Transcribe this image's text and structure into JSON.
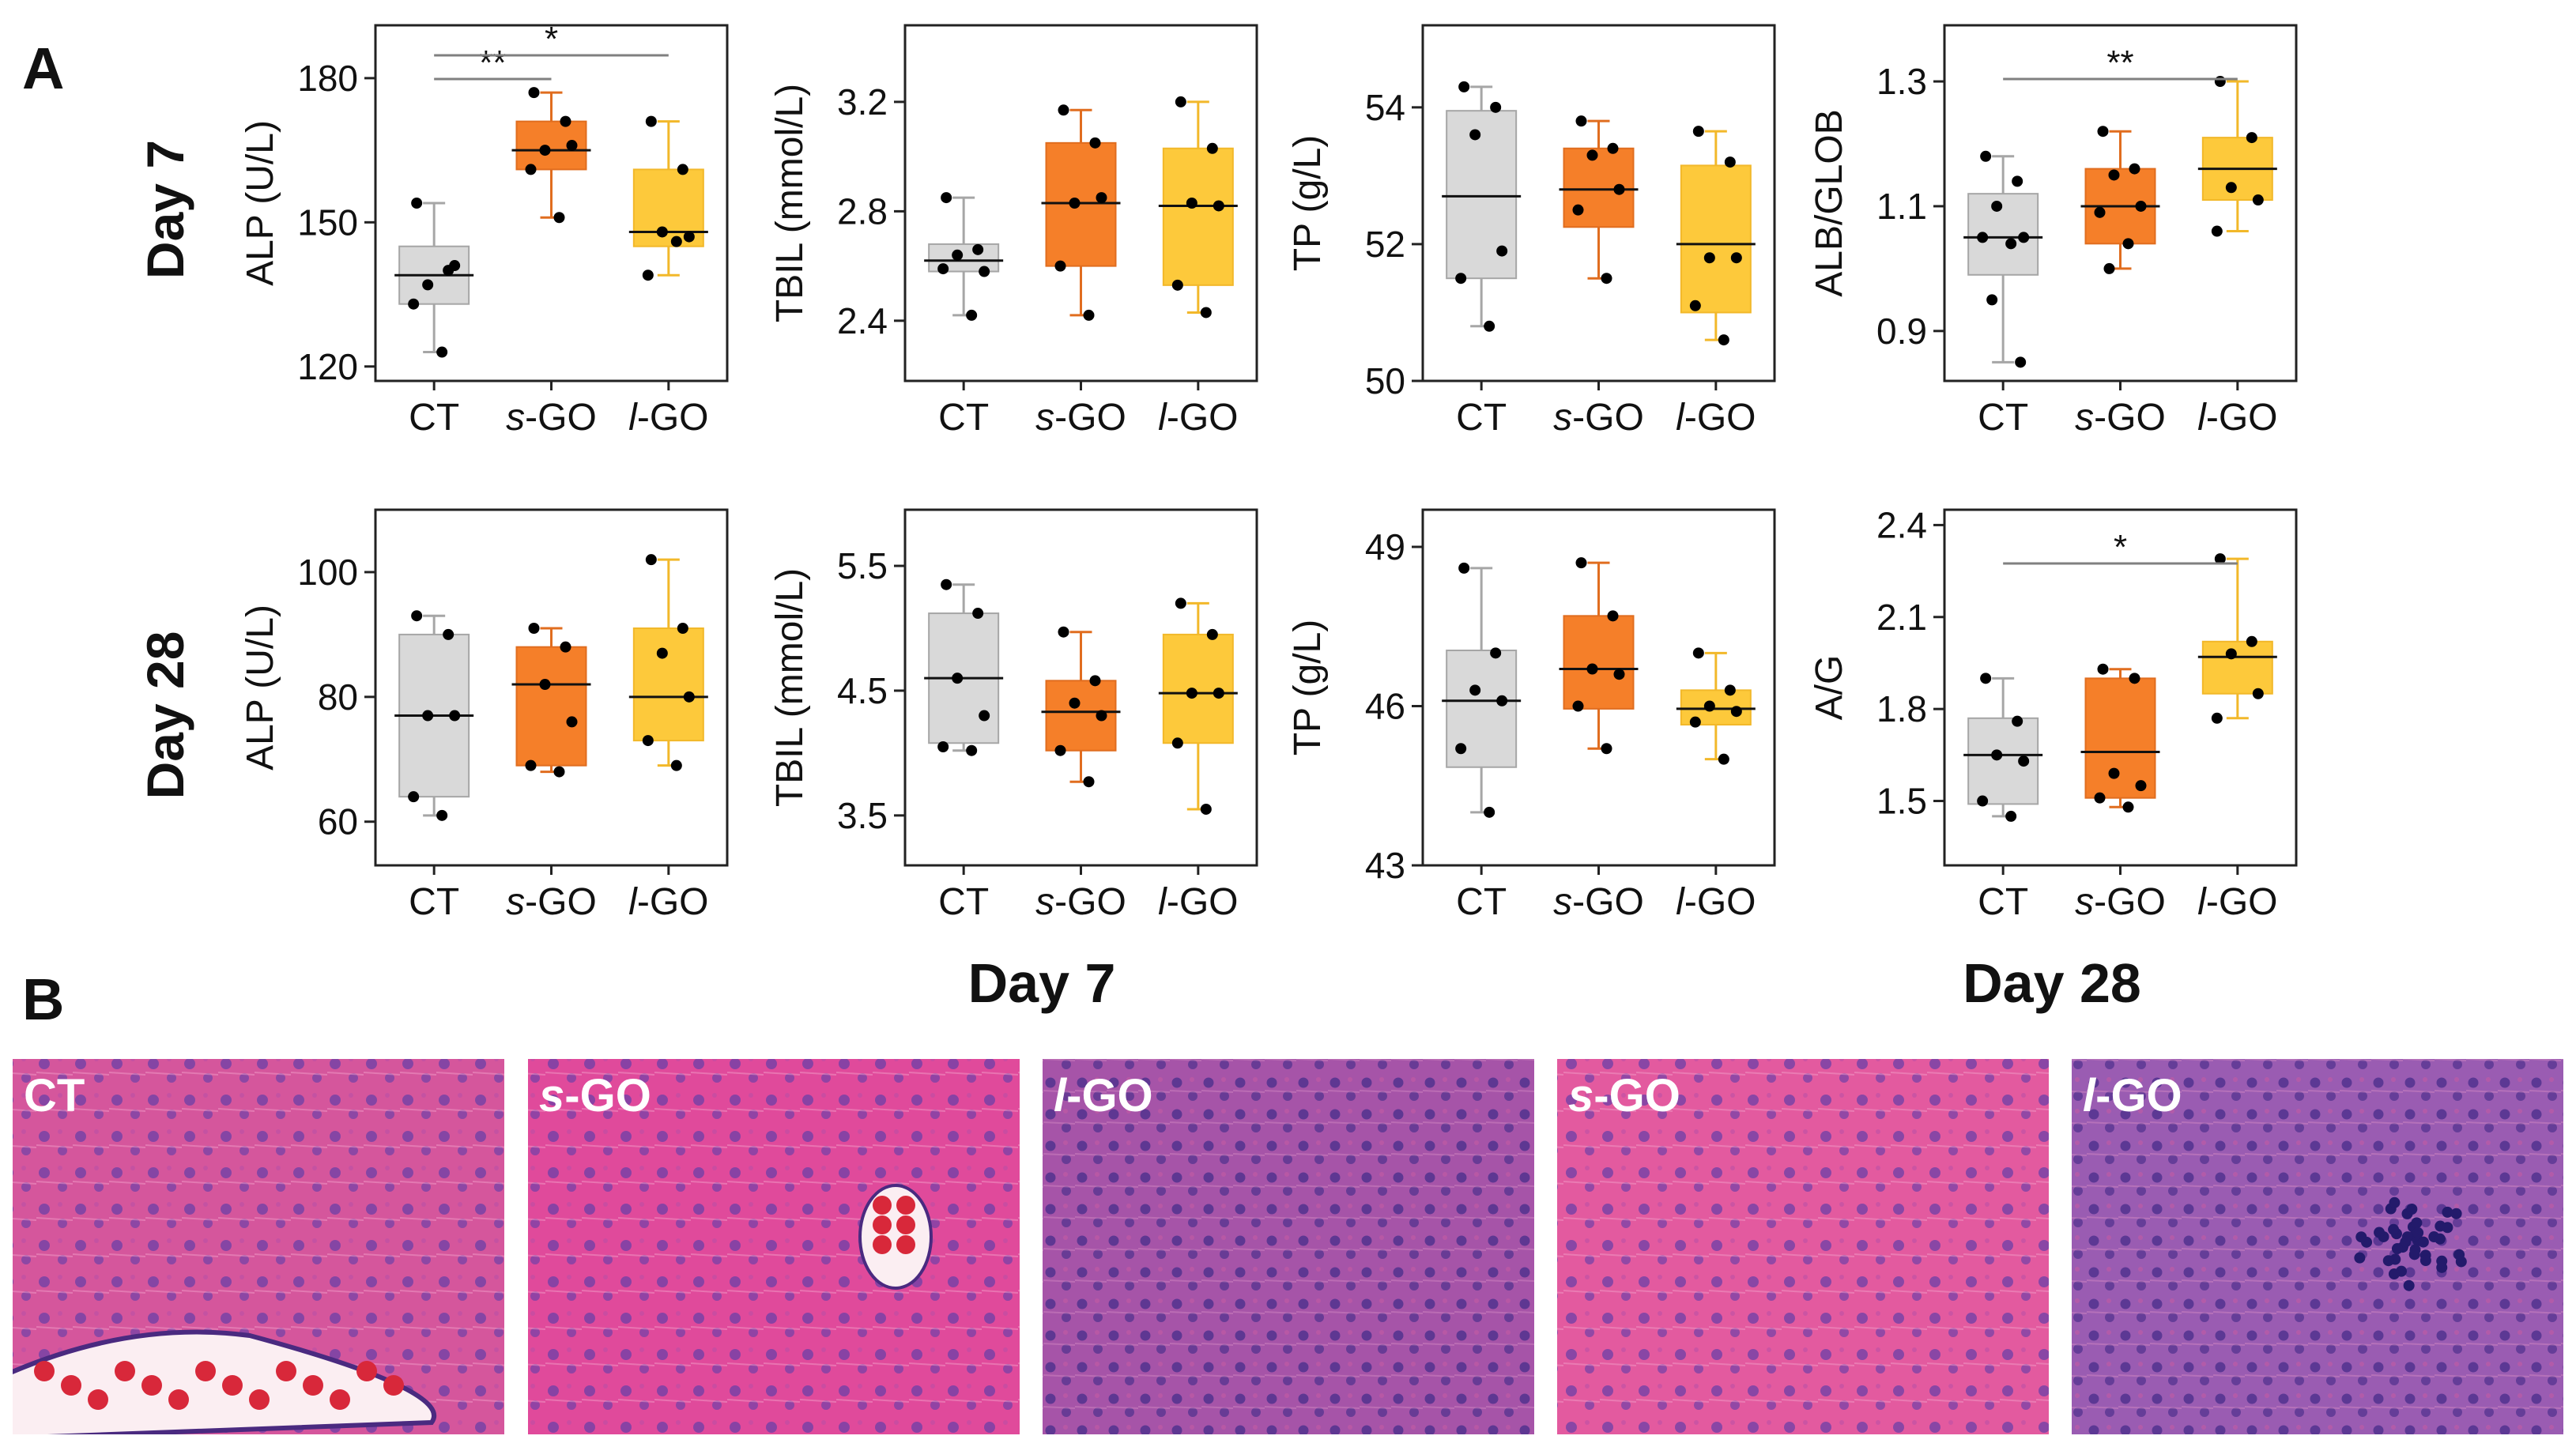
{
  "panel_a_label": "A",
  "panel_b_label": "B",
  "rows": [
    {
      "label": "Day 7"
    },
    {
      "label": "Day 28"
    }
  ],
  "colors": {
    "CT": "#d9d9d9",
    "s-GO": "#f57f29",
    "l-GO": "#fdc93b",
    "whisker_CT": "#a6a6a6",
    "whisker_s-GO": "#e06d1f",
    "whisker_l-GO": "#f2b82a",
    "median": "#111111",
    "point": "#000000",
    "sig_line": "#808080"
  },
  "chart_data": [
    {
      "type": "box",
      "row": 0,
      "col": 0,
      "ylabel": "ALP (U/L)",
      "ylim": [
        117,
        191
      ],
      "yticks": [
        120,
        150,
        180
      ],
      "categories": [
        {
          "prefix": "",
          "italic": "",
          "suffix": "CT"
        },
        {
          "prefix": "",
          "italic": "s",
          "suffix": "-GO"
        },
        {
          "prefix": "",
          "italic": "l",
          "suffix": "-GO"
        }
      ],
      "series": [
        {
          "name": "CT",
          "min": 123,
          "q1": 133,
          "median": 139,
          "q3": 145,
          "max": 154,
          "points": [
            154,
            140,
            137,
            141,
            133,
            123
          ]
        },
        {
          "name": "s-GO",
          "min": 151,
          "q1": 161,
          "median": 165,
          "q3": 171,
          "max": 177,
          "points": [
            177,
            171,
            165,
            166,
            161,
            151
          ]
        },
        {
          "name": "l-GO",
          "min": 139,
          "q1": 145,
          "median": 148,
          "q3": 161,
          "max": 171,
          "points": [
            171,
            161,
            148,
            147,
            139,
            146
          ]
        }
      ],
      "significance": [
        {
          "from": 0,
          "to": 1,
          "label": "**",
          "level": 0
        },
        {
          "from": 0,
          "to": 2,
          "label": "*",
          "level": 1
        }
      ]
    },
    {
      "type": "box",
      "row": 0,
      "col": 1,
      "ylabel": "TBIL (mmol/L)",
      "ylim": [
        2.18,
        3.48
      ],
      "yticks": [
        2.4,
        2.8,
        3.2
      ],
      "categories": [
        {
          "prefix": "",
          "italic": "",
          "suffix": "CT"
        },
        {
          "prefix": "",
          "italic": "s",
          "suffix": "-GO"
        },
        {
          "prefix": "",
          "italic": "l",
          "suffix": "-GO"
        }
      ],
      "series": [
        {
          "name": "CT",
          "min": 2.42,
          "q1": 2.58,
          "median": 2.62,
          "q3": 2.68,
          "max": 2.85,
          "points": [
            2.85,
            2.66,
            2.64,
            2.58,
            2.59,
            2.42
          ]
        },
        {
          "name": "s-GO",
          "min": 2.42,
          "q1": 2.6,
          "median": 2.83,
          "q3": 3.05,
          "max": 3.17,
          "points": [
            3.17,
            3.05,
            2.83,
            2.85,
            2.6,
            2.42
          ]
        },
        {
          "name": "l-GO",
          "min": 2.43,
          "q1": 2.53,
          "median": 2.82,
          "q3": 3.03,
          "max": 3.2,
          "points": [
            3.2,
            3.03,
            2.83,
            2.82,
            2.53,
            2.43
          ]
        }
      ],
      "significance": []
    },
    {
      "type": "box",
      "row": 0,
      "col": 2,
      "ylabel": "TP (g/L)",
      "ylim": [
        50,
        55.2
      ],
      "yticks": [
        50,
        52,
        54
      ],
      "categories": [
        {
          "prefix": "",
          "italic": "",
          "suffix": "CT"
        },
        {
          "prefix": "",
          "italic": "s",
          "suffix": "-GO"
        },
        {
          "prefix": "",
          "italic": "l",
          "suffix": "-GO"
        }
      ],
      "series": [
        {
          "name": "CT",
          "min": 50.8,
          "q1": 51.5,
          "median": 52.7,
          "q3": 53.95,
          "max": 54.3,
          "points": [
            54.3,
            54.0,
            53.6,
            51.9,
            51.5,
            50.8
          ]
        },
        {
          "name": "s-GO",
          "min": 51.5,
          "q1": 52.25,
          "median": 52.8,
          "q3": 53.4,
          "max": 53.8,
          "points": [
            53.8,
            53.4,
            53.3,
            52.8,
            52.5,
            51.5
          ]
        },
        {
          "name": "l-GO",
          "min": 50.6,
          "q1": 51.0,
          "median": 52.0,
          "q3": 53.15,
          "max": 53.65,
          "points": [
            53.65,
            53.2,
            51.8,
            51.8,
            51.1,
            50.6
          ]
        }
      ],
      "significance": []
    },
    {
      "type": "box",
      "row": 0,
      "col": 3,
      "ylabel": "ALB/GLOB",
      "ylim": [
        0.82,
        1.39
      ],
      "yticks": [
        0.9,
        1.1,
        1.3
      ],
      "categories": [
        {
          "prefix": "",
          "italic": "",
          "suffix": "CT"
        },
        {
          "prefix": "",
          "italic": "s",
          "suffix": "-GO"
        },
        {
          "prefix": "",
          "italic": "l",
          "suffix": "-GO"
        }
      ],
      "series": [
        {
          "name": "CT",
          "min": 0.85,
          "q1": 0.99,
          "median": 1.05,
          "q3": 1.12,
          "max": 1.18,
          "points": [
            1.18,
            1.14,
            1.1,
            1.05,
            1.05,
            1.04,
            0.95,
            0.85
          ]
        },
        {
          "name": "s-GO",
          "min": 1.0,
          "q1": 1.04,
          "median": 1.1,
          "q3": 1.16,
          "max": 1.22,
          "points": [
            1.22,
            1.16,
            1.15,
            1.1,
            1.09,
            1.04,
            1.0
          ]
        },
        {
          "name": "l-GO",
          "min": 1.06,
          "q1": 1.11,
          "median": 1.16,
          "q3": 1.21,
          "max": 1.3,
          "points": [
            1.3,
            1.21,
            1.13,
            1.11,
            1.06
          ]
        }
      ],
      "significance": [
        {
          "from": 0,
          "to": 2,
          "label": "**",
          "level": 0
        }
      ]
    },
    {
      "type": "box",
      "row": 1,
      "col": 0,
      "ylabel": "ALP (U/L)",
      "ylim": [
        53,
        110
      ],
      "yticks": [
        60,
        80,
        100
      ],
      "categories": [
        {
          "prefix": "",
          "italic": "",
          "suffix": "CT"
        },
        {
          "prefix": "",
          "italic": "s",
          "suffix": "-GO"
        },
        {
          "prefix": "",
          "italic": "l",
          "suffix": "-GO"
        }
      ],
      "series": [
        {
          "name": "CT",
          "min": 61,
          "q1": 64,
          "median": 77,
          "q3": 90,
          "max": 93,
          "points": [
            93,
            90,
            77,
            77,
            64,
            61
          ]
        },
        {
          "name": "s-GO",
          "min": 68,
          "q1": 69,
          "median": 82,
          "q3": 88,
          "max": 91,
          "points": [
            91,
            88,
            82,
            76,
            69,
            68
          ]
        },
        {
          "name": "l-GO",
          "min": 69,
          "q1": 73,
          "median": 80,
          "q3": 91,
          "max": 102,
          "points": [
            102,
            91,
            87,
            80,
            73,
            69
          ]
        }
      ],
      "significance": []
    },
    {
      "type": "box",
      "row": 1,
      "col": 1,
      "ylabel": "TBIL (mmol/L)",
      "ylim": [
        3.1,
        5.95
      ],
      "yticks": [
        3.5,
        4.5,
        5.5
      ],
      "categories": [
        {
          "prefix": "",
          "italic": "",
          "suffix": "CT"
        },
        {
          "prefix": "",
          "italic": "s",
          "suffix": "-GO"
        },
        {
          "prefix": "",
          "italic": "l",
          "suffix": "-GO"
        }
      ],
      "series": [
        {
          "name": "CT",
          "min": 4.02,
          "q1": 4.08,
          "median": 4.6,
          "q3": 5.12,
          "max": 5.35,
          "points": [
            5.35,
            5.12,
            4.6,
            4.3,
            4.05,
            4.02
          ]
        },
        {
          "name": "s-GO",
          "min": 3.77,
          "q1": 4.02,
          "median": 4.33,
          "q3": 4.58,
          "max": 4.97,
          "points": [
            4.97,
            4.58,
            4.4,
            4.3,
            4.02,
            3.77
          ]
        },
        {
          "name": "l-GO",
          "min": 3.55,
          "q1": 4.08,
          "median": 4.48,
          "q3": 4.95,
          "max": 5.2,
          "points": [
            5.2,
            4.95,
            4.48,
            4.48,
            4.08,
            3.55
          ]
        }
      ],
      "significance": []
    },
    {
      "type": "box",
      "row": 1,
      "col": 2,
      "ylabel": "TP (g/L)",
      "ylim": [
        43,
        49.7
      ],
      "yticks": [
        43,
        46,
        49
      ],
      "categories": [
        {
          "prefix": "",
          "italic": "",
          "suffix": "CT"
        },
        {
          "prefix": "",
          "italic": "s",
          "suffix": "-GO"
        },
        {
          "prefix": "",
          "italic": "l",
          "suffix": "-GO"
        }
      ],
      "series": [
        {
          "name": "CT",
          "min": 44.0,
          "q1": 44.85,
          "median": 46.1,
          "q3": 47.05,
          "max": 48.6,
          "points": [
            48.6,
            47.0,
            46.3,
            46.1,
            45.2,
            44.0
          ]
        },
        {
          "name": "s-GO",
          "min": 45.2,
          "q1": 45.95,
          "median": 46.7,
          "q3": 47.7,
          "max": 48.7,
          "points": [
            48.7,
            47.7,
            46.7,
            46.6,
            46.0,
            45.2
          ]
        },
        {
          "name": "l-GO",
          "min": 45.0,
          "q1": 45.65,
          "median": 45.95,
          "q3": 46.3,
          "max": 47.0,
          "points": [
            47.0,
            46.3,
            46.0,
            45.9,
            45.7,
            45.0
          ]
        }
      ],
      "significance": []
    },
    {
      "type": "box",
      "row": 1,
      "col": 3,
      "ylabel": "A/G",
      "ylim": [
        1.29,
        2.45
      ],
      "yticks": [
        1.5,
        1.8,
        2.1,
        2.4
      ],
      "categories": [
        {
          "prefix": "",
          "italic": "",
          "suffix": "CT"
        },
        {
          "prefix": "",
          "italic": "s",
          "suffix": "-GO"
        },
        {
          "prefix": "",
          "italic": "l",
          "suffix": "-GO"
        }
      ],
      "series": [
        {
          "name": "CT",
          "min": 1.45,
          "q1": 1.49,
          "median": 1.65,
          "q3": 1.77,
          "max": 1.9,
          "points": [
            1.9,
            1.76,
            1.65,
            1.63,
            1.5,
            1.45
          ]
        },
        {
          "name": "s-GO",
          "min": 1.48,
          "q1": 1.51,
          "median": 1.66,
          "q3": 1.9,
          "max": 1.93,
          "points": [
            1.93,
            1.9,
            1.59,
            1.55,
            1.51,
            1.48
          ]
        },
        {
          "name": "l-GO",
          "min": 1.77,
          "q1": 1.85,
          "median": 1.97,
          "q3": 2.02,
          "max": 2.29,
          "points": [
            2.29,
            2.02,
            1.98,
            1.85,
            1.77
          ]
        }
      ],
      "significance": [
        {
          "from": 0,
          "to": 2,
          "label": "*",
          "level": 0
        }
      ]
    }
  ],
  "panel_b": {
    "day_titles": [
      "Day 7",
      "Day 28"
    ],
    "images": [
      {
        "prefix": "",
        "italic": "",
        "suffix": "CT",
        "tone": "#d5569c",
        "feature": "vessel"
      },
      {
        "prefix": "",
        "italic": "s",
        "suffix": "-GO",
        "tone": "#e04a9b",
        "feature": "small-vessel"
      },
      {
        "prefix": "",
        "italic": "l",
        "suffix": "-GO",
        "tone": "#a654a8",
        "feature": "none"
      },
      {
        "prefix": "",
        "italic": "s",
        "suffix": "-GO",
        "tone": "#e35a9f",
        "feature": "none"
      },
      {
        "prefix": "",
        "italic": "l",
        "suffix": "-GO",
        "tone": "#9a5cb2",
        "feature": "inflammation"
      }
    ]
  }
}
